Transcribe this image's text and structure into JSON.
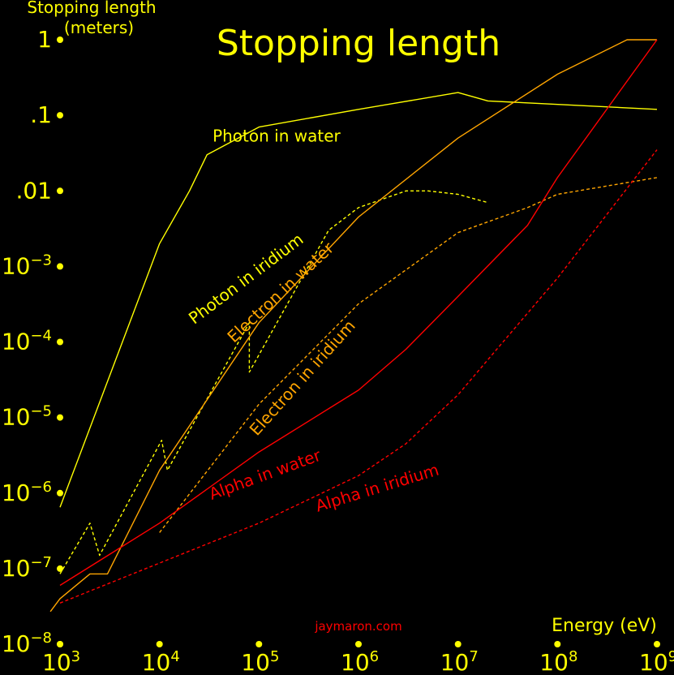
{
  "chart_data": {
    "type": "line",
    "title": "Stopping length",
    "ylabel_line1": "Stopping length",
    "ylabel_line2": "(meters)",
    "xlabel": "Energy (eV)",
    "watermark": "jaymaron.com",
    "x_scale": "log",
    "y_scale": "log",
    "xlim": [
      1000,
      1000000000
    ],
    "ylim": [
      1e-08,
      1
    ],
    "x_ticks": [
      {
        "value": 1000,
        "base": "10",
        "exp": "3"
      },
      {
        "value": 10000,
        "base": "10",
        "exp": "4"
      },
      {
        "value": 100000,
        "base": "10",
        "exp": "5"
      },
      {
        "value": 1000000,
        "base": "10",
        "exp": "6"
      },
      {
        "value": 10000000,
        "base": "10",
        "exp": "7"
      },
      {
        "value": 100000000,
        "base": "10",
        "exp": "8"
      },
      {
        "value": 1000000000,
        "base": "10",
        "exp": "9"
      }
    ],
    "y_ticks": [
      {
        "value": 1,
        "text": "1",
        "base": "",
        "exp": ""
      },
      {
        "value": 0.1,
        "text": ".1",
        "base": "",
        "exp": ""
      },
      {
        "value": 0.01,
        "text": ".01",
        "base": "",
        "exp": ""
      },
      {
        "value": 0.001,
        "text": "",
        "base": "10",
        "exp": "−3"
      },
      {
        "value": 0.0001,
        "text": "",
        "base": "10",
        "exp": "−4"
      },
      {
        "value": 1e-05,
        "text": "",
        "base": "10",
        "exp": "−5"
      },
      {
        "value": 1e-06,
        "text": "",
        "base": "10",
        "exp": "−6"
      },
      {
        "value": 1e-07,
        "text": "",
        "base": "10",
        "exp": "−7"
      },
      {
        "value": 1e-08,
        "text": "",
        "base": "10",
        "exp": "−8"
      }
    ],
    "grid": false,
    "legend": "none",
    "colors": {
      "text": "#ffff00",
      "photon": "#ffff00",
      "electron": "#ffa500",
      "alpha": "#ff0000",
      "watermark": "#ff0000"
    },
    "series": [
      {
        "name": "Photon in water",
        "color": "#ffff00",
        "dash": false,
        "points": [
          [
            1000,
            6.5e-07
          ],
          [
            10000,
            0.002
          ],
          [
            20000,
            0.01
          ],
          [
            30000,
            0.03
          ],
          [
            100000,
            0.07
          ],
          [
            1000000,
            0.12
          ],
          [
            10000000,
            0.2
          ],
          [
            20000000,
            0.155
          ],
          [
            1000000000,
            0.12
          ]
        ]
      },
      {
        "name": "Photon in iridium",
        "color": "#ffff00",
        "dash": true,
        "points": [
          [
            1000,
            8.5e-08
          ],
          [
            2000,
            4e-07
          ],
          [
            2500,
            1.5e-07
          ],
          [
            10500,
            5e-06
          ],
          [
            12000,
            2e-06
          ],
          [
            80000,
            0.00018
          ],
          [
            80000,
            4e-05
          ],
          [
            500000,
            0.003
          ],
          [
            1000000,
            0.006
          ],
          [
            3000000,
            0.01
          ],
          [
            5000000,
            0.01
          ],
          [
            10000000,
            0.009
          ],
          [
            20000000,
            0.007
          ]
        ]
      },
      {
        "name": "Electron in water",
        "color": "#ffa500",
        "dash": false,
        "points": [
          [
            800,
            2.7e-08
          ],
          [
            1000,
            4e-08
          ],
          [
            2000,
            8.5e-08
          ],
          [
            3000,
            8.5e-08
          ],
          [
            10000,
            2e-06
          ],
          [
            100000,
            0.00018
          ],
          [
            1000000,
            0.0045
          ],
          [
            10000000,
            0.05
          ],
          [
            100000000,
            0.35
          ],
          [
            500000000,
            1
          ],
          [
            1000000000,
            1
          ]
        ]
      },
      {
        "name": "Electron in iridium",
        "color": "#ffa500",
        "dash": true,
        "points": [
          [
            10000,
            3e-07
          ],
          [
            100000,
            1.5e-05
          ],
          [
            1000000,
            0.00032
          ],
          [
            10000000,
            0.0028
          ],
          [
            50000000,
            0.006
          ],
          [
            100000000,
            0.009
          ],
          [
            1000000000,
            0.015
          ]
        ]
      },
      {
        "name": "Alpha in water",
        "color": "#ff0000",
        "dash": false,
        "points": [
          [
            1000,
            6e-08
          ],
          [
            10000,
            4e-07
          ],
          [
            100000,
            3.5e-06
          ],
          [
            1000000,
            2.3e-05
          ],
          [
            3000000,
            8e-05
          ],
          [
            10000000,
            0.0004
          ],
          [
            50000000,
            0.0035
          ],
          [
            100000000,
            0.015
          ],
          [
            1000000000,
            1
          ]
        ]
      },
      {
        "name": "Alpha in iridium",
        "color": "#ff0000",
        "dash": true,
        "points": [
          [
            1000,
            3.5e-08
          ],
          [
            100000,
            4e-07
          ],
          [
            1000000,
            1.7e-06
          ],
          [
            3000000,
            4.5e-06
          ],
          [
            10000000,
            2e-05
          ],
          [
            100000000,
            0.0007
          ],
          [
            1000000000,
            0.035
          ]
        ]
      }
    ],
    "labels": [
      {
        "text": "Photon in water",
        "color": "#ffff00",
        "x": 150000,
        "y": 0.045,
        "angle": 0
      },
      {
        "text": "Photon in iridium",
        "color": "#ffff00",
        "x": 80000,
        "y": 0.0006,
        "angle": -37
      },
      {
        "text": "Electron in water",
        "color": "#ffa500",
        "x": 180000,
        "y": 0.0004,
        "angle": -43
      },
      {
        "text": "Electron in iridium",
        "color": "#ffa500",
        "x": 300000,
        "y": 3e-05,
        "angle": -48
      },
      {
        "text": "Alpha in water",
        "color": "#ff0000",
        "x": 120000,
        "y": 1.5e-06,
        "angle": -20
      },
      {
        "text": "Alpha in iridium",
        "color": "#ff0000",
        "x": 1600000,
        "y": 1e-06,
        "angle": -17
      }
    ]
  }
}
